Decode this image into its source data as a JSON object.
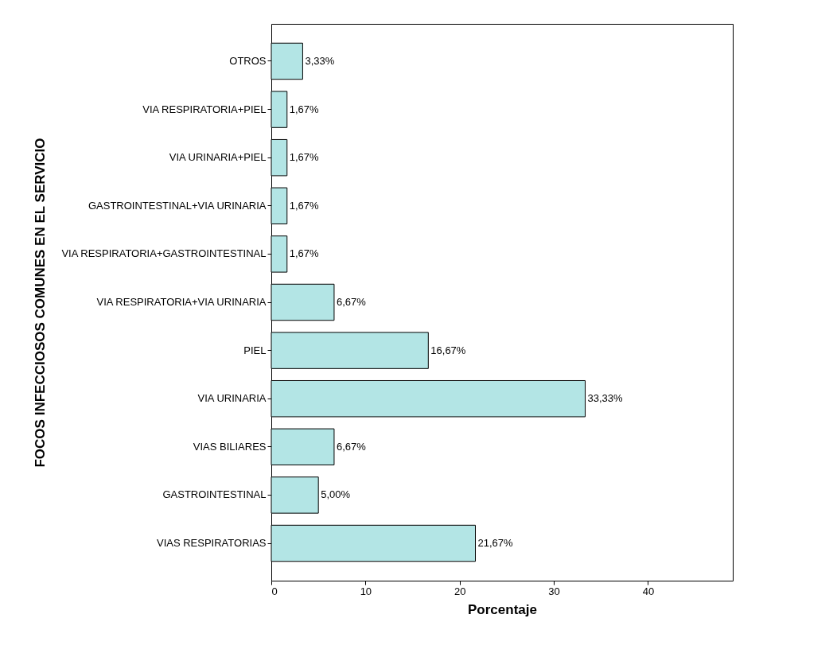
{
  "chart_data": {
    "type": "bar",
    "orientation": "horizontal",
    "xlabel": "Porcentaje",
    "ylabel": "FOCOS INFECCIOSOS COMUNES EN EL SERVICIO",
    "categories": [
      "OTROS",
      "VIA RESPIRATORIA+PIEL",
      "VIA URINARIA+PIEL",
      "GASTROINTESTINAL+VIA URINARIA",
      "VIA RESPIRATORIA+GASTROINTESTINAL",
      "VIA RESPIRATORIA+VIA URINARIA",
      "PIEL",
      "VIA URINARIA",
      "VIAS BILIARES",
      "GASTROINTESTINAL",
      "VIAS RESPIRATORIAS"
    ],
    "values": [
      3.33,
      1.67,
      1.67,
      1.67,
      1.67,
      6.67,
      16.67,
      33.33,
      6.67,
      5.0,
      21.67
    ],
    "value_labels": [
      "3,33%",
      "1,67%",
      "1,67%",
      "1,67%",
      "1,67%",
      "6,67%",
      "16,67%",
      "33,33%",
      "6,67%",
      "5,00%",
      "21,67%"
    ],
    "color": "#b3e5e5",
    "xlim": [
      0,
      49
    ],
    "xticks": [
      0,
      10,
      20,
      30,
      40
    ],
    "grid": false
  }
}
